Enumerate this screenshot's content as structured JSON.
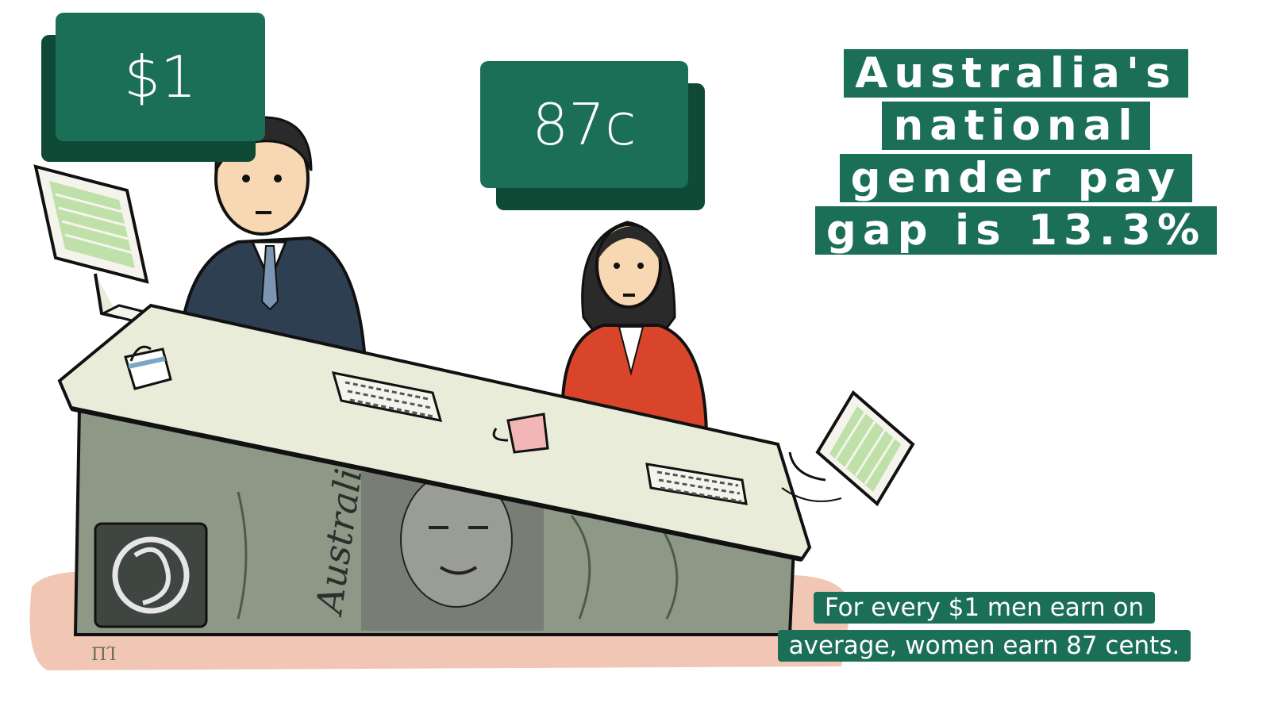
{
  "man_label": {
    "text": "$1"
  },
  "woman_label": {
    "text": "87c"
  },
  "headline": {
    "lines": [
      "Australia's",
      "national",
      "gender pay",
      "gap is 13.3%"
    ]
  },
  "caption": {
    "lines": [
      "For every $1 men earn on",
      "average, women earn 87 cents."
    ]
  },
  "banknote": {
    "text": "Australia"
  },
  "artist_mark": {
    "text": "ΠΊ"
  },
  "colors": {
    "brand_green": "#1b6f57",
    "brand_green_dark": "#0f4a37",
    "shirt_red": "#d9452a",
    "suit_navy": "#2f3f52",
    "note_gray": "#7f8a78",
    "ground_pink": "#f2c6b4"
  },
  "icons": [
    "monitor-icon",
    "keyboard-icon",
    "mug-icon"
  ]
}
